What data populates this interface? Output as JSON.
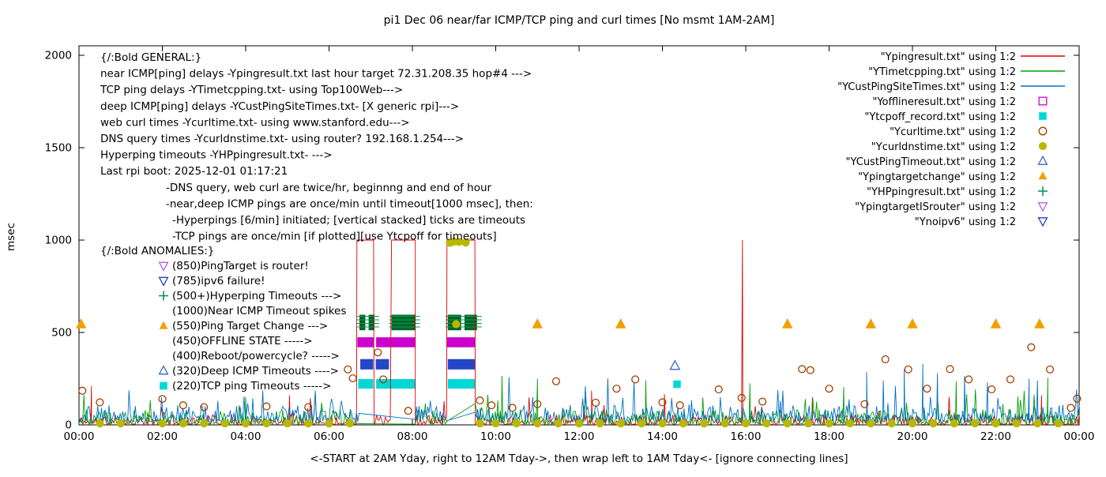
{
  "chart_data": {
    "type": "line",
    "title": "pi1 Dec 06  near/far ICMP/TCP ping and curl times [No msmt 1AM-2AM]",
    "xlabel": "<-START at 2AM Yday, right to 12AM Tday->, then wrap left to 1AM Tday<- [ignore connecting lines]",
    "ylabel": "msec",
    "ylim": [
      0,
      2000
    ],
    "y_ticks": [
      0,
      500,
      1000,
      1500,
      2000
    ],
    "xlim_hours": [
      0,
      24
    ],
    "x_ticks": {
      "hours": [
        0,
        2,
        4,
        6,
        8,
        10,
        12,
        14,
        16,
        18,
        20,
        22,
        24
      ],
      "labels": [
        "00:00",
        "02:00",
        "04:00",
        "06:00",
        "08:00",
        "10:00",
        "12:00",
        "14:00",
        "16:00",
        "18:00",
        "20:00",
        "22:00",
        "00:00"
      ]
    },
    "legend_position": "top-right-inside",
    "legend": [
      {
        "label": "\"Ypingresult.txt\" using 1:2",
        "sample": "line",
        "color": "#dd0000"
      },
      {
        "label": "\"YTimetcpping.txt\" using 1:2",
        "sample": "line",
        "color": "#00a000"
      },
      {
        "label": "\"YCustPingSiteTimes.txt\" using 1:2",
        "sample": "line",
        "color": "#0070c8"
      },
      {
        "label": "\"Yofflineresult.txt\" using 1:2",
        "sample": "square-open",
        "color": "#cc00cc"
      },
      {
        "label": "\"Ytcpoff_record.txt\" using 1:2",
        "sample": "square-filled",
        "color": "#00d8d8"
      },
      {
        "label": "\"Ycurltime.txt\" using 1:2",
        "sample": "circle-open",
        "color": "#a04000"
      },
      {
        "label": "\"Ycurldnstime.txt\" using 1:2",
        "sample": "circle-filled",
        "color": "#b8b800"
      },
      {
        "label": "\"YCustPingTimeout.txt\" using 1:2",
        "sample": "triangle-up-open",
        "color": "#3366cc"
      },
      {
        "label": "\"Ypingtargetchange\" using 1:2",
        "sample": "triangle-up-filled",
        "color": "#f0a000"
      },
      {
        "label": "\"YHPpingresult.txt\" using 1:2",
        "sample": "plus",
        "color": "#009050"
      },
      {
        "label": "\"YpingtargetISrouter\" using 1:2",
        "sample": "triangle-down-open",
        "color": "#b060e0"
      },
      {
        "label": "\"Ynoipv6\" using 1:2",
        "sample": "triangle-down-open",
        "color": "#2040c0"
      }
    ],
    "series": [
      {
        "id": "near-icmp",
        "file": "Ypingresult.txt",
        "color": "#dd0000",
        "noise": {
          "seed": 11,
          "base": 2,
          "amp": 55,
          "spike_prob": 0.02,
          "spike_amp": 150
        },
        "timeout_windows": [
          [
            6.67,
            7.07
          ],
          [
            7.5,
            8.07
          ],
          [
            8.83,
            9.5
          ]
        ],
        "timeout_level": 1000,
        "spikes": [
          [
            0.3,
            210
          ],
          [
            5.05,
            160
          ],
          [
            12.3,
            185
          ],
          [
            14.05,
            165
          ],
          [
            15.92,
            1000
          ],
          [
            17.6,
            150
          ],
          [
            23.1,
            160
          ]
        ]
      },
      {
        "id": "tcp-ping",
        "file": "YTimetcpping.txt",
        "color": "#00a000",
        "noise": {
          "seed": 23,
          "base": 4,
          "amp": 80,
          "spike_prob": 0.05,
          "spike_amp": 150
        },
        "gap_windows": [
          [
            6.7,
            8.07
          ],
          [
            8.83,
            9.5
          ]
        ],
        "spikes": [
          [
            4.0,
            150
          ],
          [
            10.15,
            265
          ],
          [
            11.0,
            250
          ],
          [
            13.6,
            240
          ],
          [
            16.1,
            225
          ],
          [
            18.35,
            205
          ],
          [
            21.05,
            235
          ],
          [
            23.25,
            255
          ]
        ]
      },
      {
        "id": "deep-icmp",
        "file": "YCustPingSiteTimes.txt",
        "color": "#0070c8",
        "noise": {
          "seed": 37,
          "base": 18,
          "amp": 90,
          "spike_prob": 0.06,
          "spike_amp": 170
        },
        "gap_windows": [
          [
            6.75,
            8.07
          ],
          [
            8.85,
            9.5
          ]
        ],
        "spikes": [
          [
            18.9,
            285
          ],
          [
            19.3,
            240
          ],
          [
            19.8,
            300
          ],
          [
            20.25,
            330
          ],
          [
            20.6,
            280
          ],
          [
            21.25,
            265
          ],
          [
            21.8,
            230
          ],
          [
            22.8,
            250
          ],
          [
            23.0,
            240
          ]
        ]
      }
    ],
    "blocks": [
      {
        "id": "hyperping-timeout-blocks",
        "label": "Hyperping Timeouts",
        "color": "#006428",
        "tick_lines": true,
        "tick_color": "#00a050",
        "v_range": [
          512,
          596
        ],
        "x_ranges": [
          [
            6.73,
            6.87
          ],
          [
            6.95,
            7.09
          ],
          [
            7.5,
            8.07
          ],
          [
            8.85,
            9.17
          ],
          [
            9.25,
            9.55
          ]
        ]
      },
      {
        "id": "offline-state-blocks",
        "label": "OFFLINE STATE",
        "color": "#cc00cc",
        "tick_lines": false,
        "v_range": [
          420,
          474
        ],
        "x_ranges": [
          [
            6.68,
            7.07
          ],
          [
            7.13,
            8.07
          ],
          [
            8.83,
            9.5
          ]
        ]
      },
      {
        "id": "deep-icmp-timeout-blocks",
        "label": "Deep ICMP Timeouts",
        "color": "#2346c8",
        "tick_lines": false,
        "v_range": [
          300,
          356
        ],
        "x_ranges": [
          [
            6.75,
            7.06
          ],
          [
            7.12,
            7.44
          ],
          [
            8.85,
            9.5
          ]
        ]
      },
      {
        "id": "tcp-timeout-blocks",
        "label": "TCP ping Timeouts",
        "color": "#00d8d8",
        "tick_lines": false,
        "v_range": [
          196,
          248
        ],
        "x_ranges": [
          [
            6.7,
            7.06
          ],
          [
            7.13,
            8.07
          ],
          [
            8.85,
            9.5
          ]
        ]
      }
    ],
    "point_series": [
      {
        "id": "curl-times",
        "file": "Ycurltime.txt",
        "shape": "circle-open",
        "color": "#a04000",
        "size": 5.5,
        "points": [
          [
            0.08,
            185
          ],
          [
            0.5,
            122
          ],
          [
            2.0,
            140
          ],
          [
            2.5,
            106
          ],
          [
            3.0,
            96
          ],
          [
            4.5,
            100
          ],
          [
            5.5,
            96
          ],
          [
            6.45,
            300
          ],
          [
            6.57,
            252
          ],
          [
            7.17,
            392
          ],
          [
            7.3,
            246
          ],
          [
            7.9,
            76
          ],
          [
            9.62,
            132
          ],
          [
            9.9,
            106
          ],
          [
            10.4,
            92
          ],
          [
            11.0,
            112
          ],
          [
            11.45,
            236
          ],
          [
            12.4,
            120
          ],
          [
            12.9,
            196
          ],
          [
            13.35,
            246
          ],
          [
            14.0,
            122
          ],
          [
            14.42,
            106
          ],
          [
            15.35,
            192
          ],
          [
            15.9,
            146
          ],
          [
            16.4,
            126
          ],
          [
            17.35,
            302
          ],
          [
            17.55,
            296
          ],
          [
            18.0,
            196
          ],
          [
            18.85,
            112
          ],
          [
            19.35,
            355
          ],
          [
            19.9,
            300
          ],
          [
            20.35,
            196
          ],
          [
            20.9,
            302
          ],
          [
            21.35,
            246
          ],
          [
            21.9,
            192
          ],
          [
            22.35,
            246
          ],
          [
            22.85,
            420
          ],
          [
            23.3,
            300
          ],
          [
            23.8,
            92
          ],
          [
            23.95,
            142
          ]
        ]
      },
      {
        "id": "dns-times",
        "file": "Ycurldnstime.txt",
        "shape": "circle-filled",
        "color": "#b8b800",
        "size": 6,
        "points": [
          [
            0.5,
            8
          ],
          [
            1.0,
            8
          ],
          [
            2.0,
            8
          ],
          [
            2.5,
            8
          ],
          [
            3.0,
            8
          ],
          [
            3.5,
            8
          ],
          [
            4.0,
            8
          ],
          [
            4.5,
            8
          ],
          [
            5.0,
            8
          ],
          [
            5.5,
            8
          ],
          [
            6.0,
            8
          ],
          [
            6.5,
            8
          ],
          [
            9.62,
            8
          ],
          [
            10.0,
            8
          ],
          [
            10.5,
            8
          ],
          [
            11.0,
            8
          ],
          [
            11.5,
            8
          ],
          [
            12.0,
            8
          ],
          [
            12.5,
            8
          ],
          [
            13.0,
            8
          ],
          [
            13.5,
            8
          ],
          [
            14.0,
            8
          ],
          [
            14.5,
            8
          ],
          [
            15.0,
            8
          ],
          [
            15.5,
            8
          ],
          [
            16.0,
            8
          ],
          [
            16.5,
            8
          ],
          [
            17.0,
            8
          ],
          [
            17.5,
            8
          ],
          [
            18.0,
            8
          ],
          [
            18.5,
            8
          ],
          [
            19.0,
            8
          ],
          [
            19.5,
            8
          ],
          [
            20.0,
            8
          ],
          [
            20.5,
            8
          ],
          [
            21.0,
            8
          ],
          [
            21.5,
            8
          ],
          [
            22.0,
            8
          ],
          [
            22.5,
            8
          ],
          [
            23.0,
            8
          ],
          [
            23.5,
            8
          ],
          [
            8.9,
            985
          ],
          [
            9.0,
            992
          ],
          [
            9.12,
            990
          ],
          [
            9.28,
            986
          ],
          [
            9.05,
            545
          ]
        ]
      },
      {
        "id": "ping-target-change",
        "file": "Ypingtargetchange",
        "shape": "triangle-up-filled",
        "color": "#f0a000",
        "size": 7.5,
        "points": [
          [
            0.05,
            545
          ],
          [
            11.0,
            545
          ],
          [
            13.0,
            545
          ],
          [
            17.0,
            545
          ],
          [
            19.0,
            545
          ],
          [
            20.0,
            545
          ],
          [
            22.0,
            545
          ],
          [
            23.05,
            545
          ]
        ]
      },
      {
        "id": "deep-icmp-timeout-point",
        "file": "YCustPingTimeout.txt",
        "shape": "triangle-up-open",
        "color": "#3366cc",
        "size": 6.5,
        "points": [
          [
            14.3,
            320
          ]
        ]
      },
      {
        "id": "tcp-off-point",
        "file": "Ytcpoff_record.txt",
        "shape": "square-filled",
        "color": "#00d8d8",
        "size": 6,
        "points": [
          [
            14.35,
            220
          ]
        ]
      }
    ],
    "annotations": {
      "general": {
        "header": "{/:Bold GENERAL:}",
        "lines": [
          {
            "text": "{/:Bold GENERAL:}",
            "indent": 0
          },
          {
            "text": "near ICMP[ping] delays -Ypingresult.txt last hour target 72.31.208.35 hop#4 --->",
            "indent": 0
          },
          {
            "text": "TCP ping delays -YTimetcpping.txt- using Top100Web--->",
            "indent": 0
          },
          {
            "text": "deep ICMP[ping] delays -YCustPingSiteTimes.txt- [X generic rpi]--->",
            "indent": 0
          },
          {
            "text": "web curl times -Ycurltime.txt- using www.stanford.edu--->",
            "indent": 0
          },
          {
            "text": "DNS query times -Ycurldnstime.txt- using router? 192.168.1.254--->",
            "indent": 0
          },
          {
            "text": "Hyperping timeouts -YHPpingresult.txt- --->",
            "indent": 0
          },
          {
            "text": "Last rpi boot: 2025-12-01 01:17:21",
            "indent": 0
          },
          {
            "text": "-DNS query, web curl are twice/hr, beginnng and end of hour",
            "indent": 83
          },
          {
            "text": "-near,deep ICMP pings are once/min until timeout[1000 msec], then:",
            "indent": 83
          },
          {
            "text": "-Hyperpings [6/min] initiated; [vertical stacked] ticks are timeouts",
            "indent": 91
          },
          {
            "text": "-TCP pings are once/min [if plotted][use Ytcpoff for timeouts]",
            "indent": 91
          }
        ]
      },
      "anomalies": {
        "header": "{/:Bold ANOMALIES:}",
        "lines": [
          {
            "marker": "triangle-down-open",
            "color": "#b060e0",
            "text": "(850)PingTarget is router!"
          },
          {
            "marker": "triangle-down-open",
            "color": "#2040c0",
            "text": "(785)ipv6 failure!"
          },
          {
            "marker": "plus",
            "color": "#009050",
            "text": "(500+)Hyperping Timeouts --->"
          },
          {
            "marker": null,
            "color": null,
            "text": "(1000)Near ICMP Timeout spikes"
          },
          {
            "marker": "triangle-up-filled",
            "color": "#f0a000",
            "text": "(550)Ping Target Change --->"
          },
          {
            "marker": null,
            "color": null,
            "text": "(450)OFFLINE STATE ----->"
          },
          {
            "marker": null,
            "color": null,
            "text": "(400)Reboot/powercycle? ----->"
          },
          {
            "marker": "triangle-up-open",
            "color": "#3366cc",
            "text": "(320)Deep ICMP Timeouts ---->"
          },
          {
            "marker": "square-filled",
            "color": "#00d8d8",
            "text": "(220)TCP ping Timeouts ----->"
          }
        ]
      }
    }
  }
}
